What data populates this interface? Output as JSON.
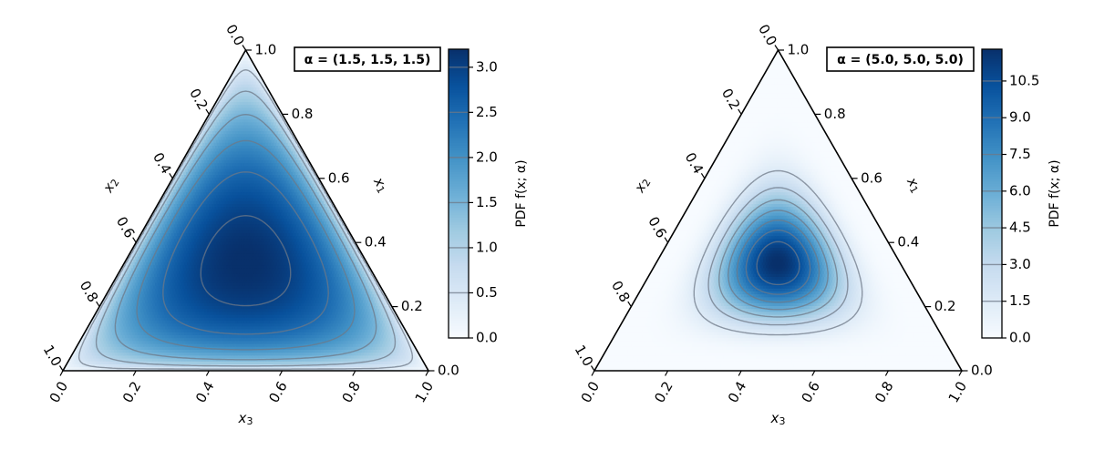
{
  "chart_data": [
    {
      "type": "ternary-contour",
      "legend": "α = (1.5, 1.5, 1.5)",
      "alpha": [
        1.5,
        1.5,
        1.5
      ],
      "ticks": [
        "0.0",
        "0.2",
        "0.4",
        "0.6",
        "0.8",
        "1.0"
      ],
      "axes": {
        "x1": "x1",
        "x2": "x2",
        "x3": "x3"
      },
      "colorbar": {
        "label": "PDF f(x; α)",
        "ticks": [
          "0.0",
          "0.5",
          "1.0",
          "1.5",
          "2.0",
          "2.5",
          "3.0"
        ],
        "tick_values": [
          0,
          0.5,
          1.0,
          1.5,
          2.0,
          2.5,
          3.0
        ],
        "min": 0,
        "max": 3.2
      },
      "contour_levels": [
        0.5,
        1.0,
        1.5,
        2.0,
        2.5,
        3.0
      ],
      "colormap": [
        "#f7fbff",
        "#deebf7",
        "#c6dbef",
        "#9ecae1",
        "#6baed6",
        "#4292c6",
        "#2171b5",
        "#08519c",
        "#08306b"
      ]
    },
    {
      "type": "ternary-contour",
      "legend": "α = (5.0, 5.0, 5.0)",
      "alpha": [
        5.0,
        5.0,
        5.0
      ],
      "ticks": [
        "0.0",
        "0.2",
        "0.4",
        "0.6",
        "0.8",
        "1.0"
      ],
      "axes": {
        "x1": "x1",
        "x2": "x2",
        "x3": "x3"
      },
      "colorbar": {
        "label": "PDF f(x; α)",
        "ticks": [
          "0.0",
          "1.5",
          "3.0",
          "4.5",
          "6.0",
          "7.5",
          "9.0",
          "10.5"
        ],
        "tick_values": [
          0,
          1.5,
          3.0,
          4.5,
          6.0,
          7.5,
          9.0,
          10.5
        ],
        "min": 0,
        "max": 11.8
      },
      "contour_levels": [
        1.5,
        3.0,
        4.5,
        6.0,
        7.5,
        9.0,
        10.5
      ],
      "colormap": [
        "#f7fbff",
        "#deebf7",
        "#c6dbef",
        "#9ecae1",
        "#6baed6",
        "#4292c6",
        "#2171b5",
        "#08519c",
        "#08306b"
      ]
    }
  ]
}
